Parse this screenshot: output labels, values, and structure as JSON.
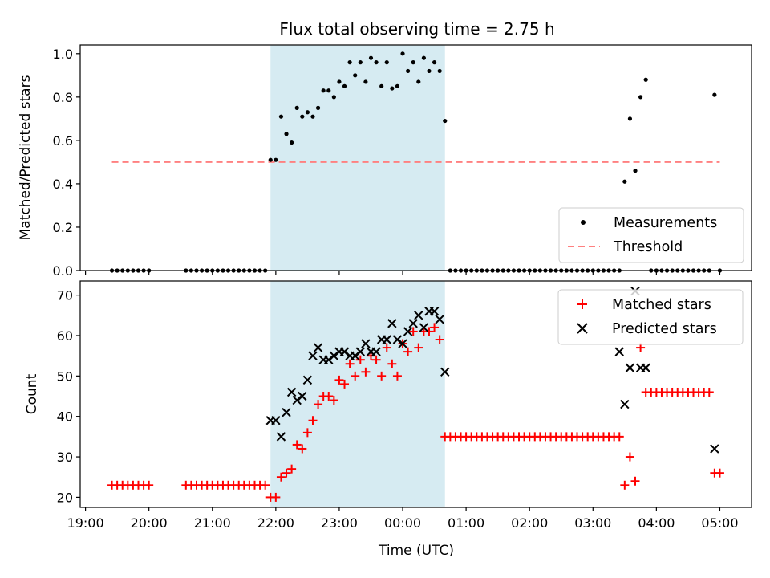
{
  "chart_data": [
    {
      "type": "scatter",
      "title": "Flux total observing time = 2.75 h",
      "xlabel": "",
      "ylabel": "Matched/Predicted stars",
      "ylim": [
        0,
        1.04
      ],
      "yticks": [
        "0.0",
        "0.2",
        "0.4",
        "0.6",
        "0.8",
        "1.0"
      ],
      "grid": false,
      "legend_placement": "bottom-right",
      "highlight_span": {
        "start": "21:55",
        "end": "00:40"
      },
      "threshold": {
        "name": "Threshold",
        "value": 0.5,
        "x_start": "19:25",
        "x_end": "05:00",
        "color": "#ff8080"
      },
      "series": [
        {
          "name": "Measurements",
          "color": "#000000",
          "x": [
            "19:25",
            "19:30",
            "19:35",
            "19:40",
            "19:45",
            "19:50",
            "19:55",
            "20:00",
            "20:35",
            "20:40",
            "20:45",
            "20:50",
            "20:55",
            "21:00",
            "21:05",
            "21:10",
            "21:15",
            "21:20",
            "21:25",
            "21:30",
            "21:35",
            "21:40",
            "21:45",
            "21:50",
            "21:55",
            "22:00",
            "22:05",
            "22:10",
            "22:15",
            "22:20",
            "22:25",
            "22:30",
            "22:35",
            "22:40",
            "22:45",
            "22:50",
            "22:55",
            "23:00",
            "23:05",
            "23:10",
            "23:15",
            "23:20",
            "23:25",
            "23:30",
            "23:35",
            "23:40",
            "23:45",
            "23:50",
            "23:55",
            "00:00",
            "00:05",
            "00:10",
            "00:15",
            "00:20",
            "00:25",
            "00:30",
            "00:35",
            "00:40",
            "00:45",
            "00:50",
            "00:55",
            "01:00",
            "01:05",
            "01:10",
            "01:15",
            "01:20",
            "01:25",
            "01:30",
            "01:35",
            "01:40",
            "01:45",
            "01:50",
            "01:55",
            "02:00",
            "02:05",
            "02:10",
            "02:15",
            "02:20",
            "02:25",
            "02:30",
            "02:35",
            "02:40",
            "02:45",
            "02:50",
            "02:55",
            "03:00",
            "03:05",
            "03:10",
            "03:15",
            "03:20",
            "03:25",
            "03:30",
            "03:35",
            "03:40",
            "03:45",
            "03:50",
            "03:55",
            "04:00",
            "04:05",
            "04:10",
            "04:15",
            "04:20",
            "04:25",
            "04:30",
            "04:35",
            "04:40",
            "04:45",
            "04:50",
            "04:55",
            "05:00"
          ],
          "y": [
            0,
            0,
            0,
            0,
            0,
            0,
            0,
            0,
            0,
            0,
            0,
            0,
            0,
            0,
            0,
            0,
            0,
            0,
            0,
            0,
            0,
            0,
            0,
            0,
            0.51,
            0.51,
            0.71,
            0.63,
            0.59,
            0.75,
            0.71,
            0.73,
            0.71,
            0.75,
            0.83,
            0.83,
            0.8,
            0.87,
            0.85,
            0.96,
            0.9,
            0.96,
            0.87,
            0.98,
            0.96,
            0.85,
            0.96,
            0.84,
            0.85,
            1.0,
            0.92,
            0.96,
            0.87,
            0.98,
            0.92,
            0.96,
            0.92,
            0.69,
            0,
            0,
            0,
            0,
            0,
            0,
            0,
            0,
            0,
            0,
            0,
            0,
            0,
            0,
            0,
            0,
            0,
            0,
            0,
            0,
            0,
            0,
            0,
            0,
            0,
            0,
            0,
            0,
            0,
            0,
            0,
            0,
            0,
            0.41,
            0.7,
            0.46,
            0.8,
            0.88,
            0,
            0,
            0,
            0,
            0,
            0,
            0,
            0,
            0,
            0,
            0,
            0,
            0.81,
            0
          ]
        }
      ]
    },
    {
      "type": "scatter",
      "title": "",
      "xlabel": "Time (UTC)",
      "ylabel": "Count",
      "ylim": [
        17.5,
        73.5
      ],
      "yticks": [
        "20",
        "30",
        "40",
        "50",
        "60",
        "70"
      ],
      "xlim": [
        "18:55",
        "05:30"
      ],
      "xticks": [
        "19:00",
        "20:00",
        "21:00",
        "22:00",
        "23:00",
        "00:00",
        "01:00",
        "02:00",
        "03:00",
        "04:00",
        "05:00"
      ],
      "grid": false,
      "legend_placement": "top-right",
      "highlight_span": {
        "start": "21:55",
        "end": "00:40"
      },
      "series": [
        {
          "name": "Matched stars",
          "color": "#ff0000",
          "marker": "+",
          "x": [
            "19:25",
            "19:30",
            "19:35",
            "19:40",
            "19:45",
            "19:50",
            "19:55",
            "20:00",
            "20:35",
            "20:40",
            "20:45",
            "20:50",
            "20:55",
            "21:00",
            "21:05",
            "21:10",
            "21:15",
            "21:20",
            "21:25",
            "21:30",
            "21:35",
            "21:40",
            "21:45",
            "21:50",
            "21:55",
            "22:00",
            "22:05",
            "22:10",
            "22:15",
            "22:20",
            "22:25",
            "22:30",
            "22:35",
            "22:40",
            "22:45",
            "22:50",
            "22:55",
            "23:00",
            "23:05",
            "23:10",
            "23:15",
            "23:20",
            "23:25",
            "23:30",
            "23:35",
            "23:40",
            "23:45",
            "23:50",
            "23:55",
            "00:00",
            "00:05",
            "00:10",
            "00:15",
            "00:20",
            "00:25",
            "00:30",
            "00:35",
            "00:40",
            "00:45",
            "00:50",
            "00:55",
            "01:00",
            "01:05",
            "01:10",
            "01:15",
            "01:20",
            "01:25",
            "01:30",
            "01:35",
            "01:40",
            "01:45",
            "01:50",
            "01:55",
            "02:00",
            "02:05",
            "02:10",
            "02:15",
            "02:20",
            "02:25",
            "02:30",
            "02:35",
            "02:40",
            "02:45",
            "02:50",
            "02:55",
            "03:00",
            "03:05",
            "03:10",
            "03:15",
            "03:20",
            "03:25",
            "03:30",
            "03:35",
            "03:40",
            "03:45",
            "03:50",
            "03:55",
            "04:00",
            "04:05",
            "04:10",
            "04:15",
            "04:20",
            "04:25",
            "04:30",
            "04:35",
            "04:40",
            "04:45",
            "04:50",
            "04:55",
            "05:00"
          ],
          "y": [
            23,
            23,
            23,
            23,
            23,
            23,
            23,
            23,
            23,
            23,
            23,
            23,
            23,
            23,
            23,
            23,
            23,
            23,
            23,
            23,
            23,
            23,
            23,
            23,
            20,
            20,
            25,
            26,
            27,
            33,
            32,
            36,
            39,
            43,
            45,
            45,
            44,
            49,
            48,
            53,
            50,
            54,
            51,
            55,
            54,
            50,
            57,
            53,
            50,
            58,
            56,
            61,
            57,
            61,
            61,
            62,
            59,
            35,
            35,
            35,
            35,
            35,
            35,
            35,
            35,
            35,
            35,
            35,
            35,
            35,
            35,
            35,
            35,
            35,
            35,
            35,
            35,
            35,
            35,
            35,
            35,
            35,
            35,
            35,
            35,
            35,
            35,
            35,
            35,
            35,
            35,
            23,
            30,
            24,
            57,
            46,
            46,
            46,
            46,
            46,
            46,
            46,
            46,
            46,
            46,
            46,
            46,
            46,
            26,
            26
          ]
        },
        {
          "name": "Predicted stars",
          "color": "#000000",
          "marker": "x",
          "x": [
            "21:55",
            "22:00",
            "22:05",
            "22:10",
            "22:15",
            "22:20",
            "22:25",
            "22:30",
            "22:35",
            "22:40",
            "22:45",
            "22:50",
            "22:55",
            "23:00",
            "23:05",
            "23:10",
            "23:15",
            "23:20",
            "23:25",
            "23:30",
            "23:35",
            "23:40",
            "23:45",
            "23:50",
            "23:55",
            "00:00",
            "00:05",
            "00:10",
            "00:15",
            "00:20",
            "00:25",
            "00:30",
            "00:35",
            "00:40",
            "03:25",
            "03:30",
            "03:35",
            "03:40",
            "03:45",
            "03:50",
            "04:55"
          ],
          "y": [
            39,
            39,
            35,
            41,
            46,
            44,
            45,
            49,
            55,
            57,
            54,
            54,
            55,
            56,
            56,
            55,
            55,
            56,
            58,
            56,
            56,
            59,
            59,
            63,
            59,
            58,
            61,
            63,
            65,
            62,
            66,
            66,
            64,
            51,
            56,
            43,
            52,
            71,
            52,
            52,
            32
          ]
        }
      ]
    }
  ]
}
